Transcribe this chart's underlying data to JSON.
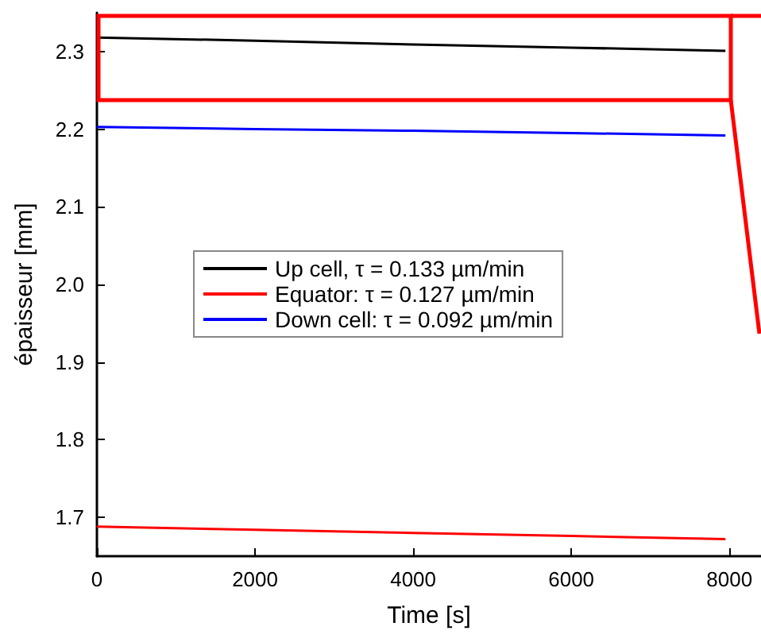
{
  "chart_data": {
    "type": "line",
    "xlabel": "Time [s]",
    "ylabel": "épaisseur [mm]",
    "x": [
      0,
      2000,
      4000,
      6000,
      7950
    ],
    "series": [
      {
        "name": "Up cell, τ = 0.133 µm/min",
        "color": "#000000",
        "values": [
          2.318,
          2.314,
          2.309,
          2.305,
          2.301
        ]
      },
      {
        "name": "Equator: τ = 0.127 µm/min",
        "color": "#ff0000",
        "values": [
          1.688,
          1.684,
          1.68,
          1.676,
          1.672
        ]
      },
      {
        "name": "Down cell: τ = 0.092 µm/min",
        "color": "#0000ff",
        "values": [
          2.203,
          2.2,
          2.198,
          2.195,
          2.192
        ]
      }
    ],
    "xlim": [
      0,
      8400
    ],
    "ylim": [
      1.65,
      2.35
    ],
    "xticks": [
      0,
      2000,
      4000,
      6000,
      8000
    ],
    "yticks": [
      {
        "value": 1.7,
        "label": "1.7"
      },
      {
        "value": 1.8,
        "label": "1.8"
      },
      {
        "value": 1.9,
        "label": "1.9"
      },
      {
        "value": 2.0,
        "label": "2.0"
      },
      {
        "value": 2.1,
        "label": "2.1"
      },
      {
        "value": 2.2,
        "label": "2.2"
      },
      {
        "value": 2.3,
        "label": "2.3"
      }
    ],
    "grid": false,
    "legend": "left",
    "marker": "none",
    "line_style": "solid"
  }
}
